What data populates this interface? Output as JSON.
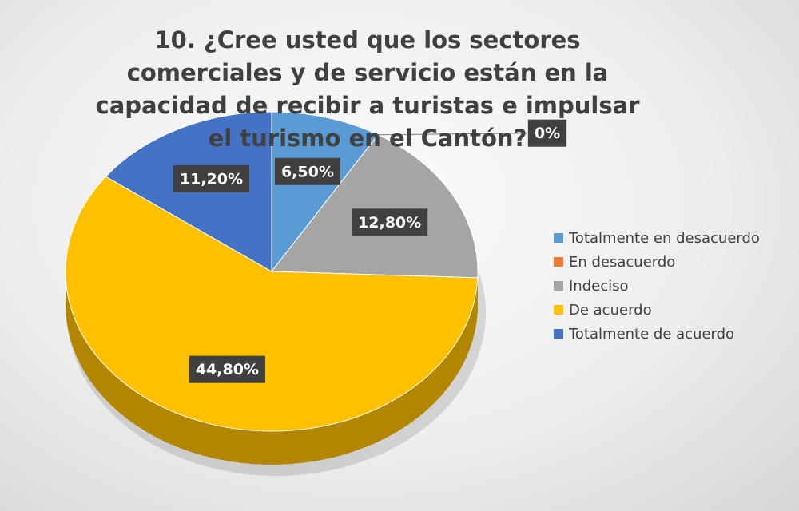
{
  "chart_data": {
    "type": "pie",
    "title": "10. ¿Cree usted que los sectores comerciales y de servicio están en la capacidad de recibir a turistas e impulsar el turismo en el Cantón?",
    "categories": [
      "Totalmente en desacuerdo",
      "En desacuerdo",
      "Indeciso",
      "De acuerdo",
      "Totalmente de acuerdo"
    ],
    "values": [
      6.5,
      0,
      12.8,
      44.8,
      11.2
    ],
    "value_labels": [
      "6,50%",
      "0%",
      "12,80%",
      "44,80%",
      "11,20%"
    ],
    "colors": [
      "#5b9bd5",
      "#ed7d31",
      "#a5a5a5",
      "#ffc000",
      "#4472c4"
    ],
    "legend": "right"
  }
}
